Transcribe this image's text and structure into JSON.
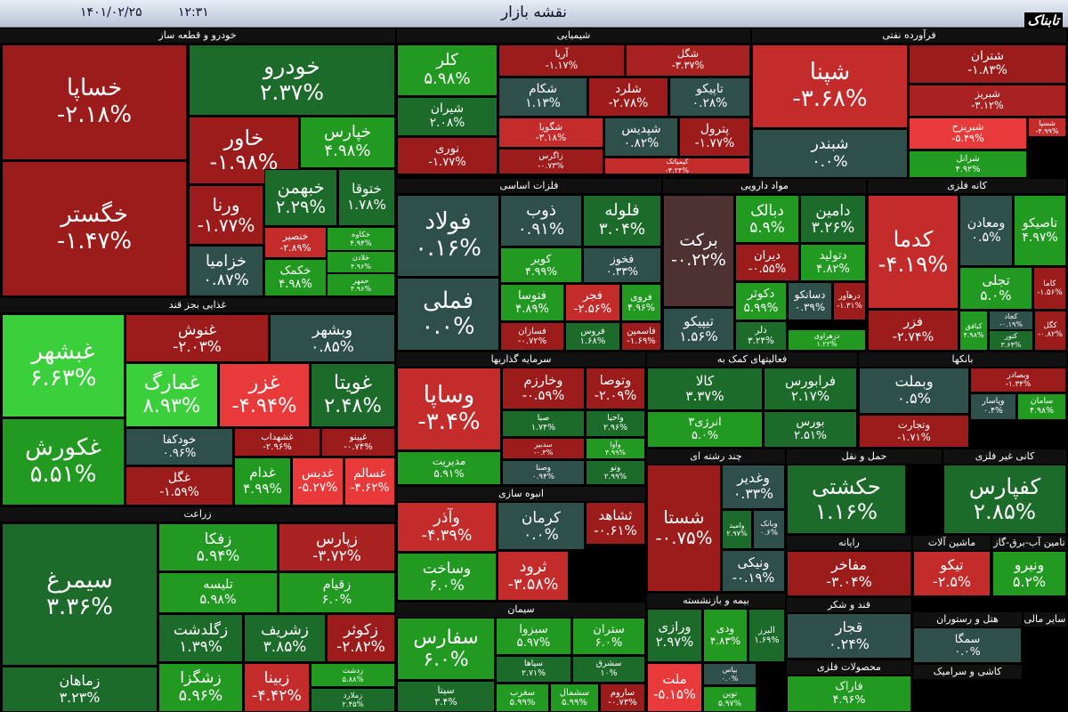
{
  "header": {
    "date": "۱۴۰۱/۰۲/۲۵",
    "time": "۱۲:۳۱",
    "title": "نقشه بازار",
    "logo": "تابناک"
  },
  "sectors": [
    {
      "name": "خودرو و قطعه ساز",
      "tiles": [
        {
          "name": "خساپا",
          "change": "-۲.۱۸%",
          "color": "#9c1c1c"
        },
        {
          "name": "خگستر",
          "change": "-۱.۴۷%",
          "color": "#9c1c1c"
        },
        {
          "name": "خودرو",
          "change": "۲.۳۷%",
          "color": "#1d6b2b"
        },
        {
          "name": "خاور",
          "change": "-۱.۹۸%",
          "color": "#9c1c1c"
        },
        {
          "name": "خپارس",
          "change": "۴.۹۸%",
          "color": "#229a22"
        },
        {
          "name": "ورنا",
          "change": "-۱.۷۷%",
          "color": "#9c1c1c"
        },
        {
          "name": "خبهمن",
          "change": "۲.۲۹%",
          "color": "#1d6b2b"
        },
        {
          "name": "ختوقا",
          "change": "۱.۷۸%",
          "color": "#1d6b2b"
        },
        {
          "name": "خزامیا",
          "change": "۰.۸۷%",
          "color": "#2f4f4a"
        },
        {
          "name": "خنصیر",
          "change": "-۲.۸۹%",
          "color": "#c42b2b"
        },
        {
          "name": "خکمک",
          "change": "۴.۹۸%",
          "color": "#229a22"
        },
        {
          "name": "خکاوه",
          "change": "۴.۹۴%",
          "color": "#229a22"
        },
        {
          "name": "خلادن",
          "change": "۴.۹۶%",
          "color": "#229a22"
        },
        {
          "name": "خمهر",
          "change": "۴.۹۶%",
          "color": "#229a22"
        }
      ]
    },
    {
      "name": "شیمیایی",
      "tiles": [
        {
          "name": "کلر",
          "change": "۵.۹۸%",
          "color": "#229a22"
        },
        {
          "name": "شیران",
          "change": "۲.۰۸%",
          "color": "#1d6b2b"
        },
        {
          "name": "نوری",
          "change": "-۱.۷۷%",
          "color": "#9c1c1c"
        },
        {
          "name": "آریا",
          "change": "-۱.۱۷%",
          "color": "#9c1c1c"
        },
        {
          "name": "شگل",
          "change": "-۳.۳۷%",
          "color": "#a82222"
        },
        {
          "name": "شکام",
          "change": "۱.۱۳%",
          "color": "#2f4f4a"
        },
        {
          "name": "شلرد",
          "change": "-۲.۷۸%",
          "color": "#9c1c1c"
        },
        {
          "name": "تاپیکو",
          "change": "۰.۲۸%",
          "color": "#2f4f4a"
        },
        {
          "name": "شگویا",
          "change": "-۳.۱۸%",
          "color": "#c42b2b"
        },
        {
          "name": "شپدیس",
          "change": "۰.۸۲%",
          "color": "#2f4f4a"
        },
        {
          "name": "پترول",
          "change": "-۱.۷۷%",
          "color": "#9c1c1c"
        },
        {
          "name": "زاگرس",
          "change": "-۰.۷۳%",
          "color": "#9c1c1c"
        },
        {
          "name": "کیمیاتک",
          "change": "-۴.۲۴%",
          "color": "#c42b2b"
        }
      ]
    },
    {
      "name": "فرآورده نفتی",
      "tiles": [
        {
          "name": "شپنا",
          "change": "-۳.۶۸%",
          "color": "#c42b2b"
        },
        {
          "name": "شبندر",
          "change": "۰.۰%",
          "color": "#2f4f4a"
        },
        {
          "name": "شتران",
          "change": "-۱.۸۳%",
          "color": "#9c1c1c"
        },
        {
          "name": "شبریز",
          "change": "-۳.۱۲%",
          "color": "#a82222"
        },
        {
          "name": "شبریزح",
          "change": "-۵.۴۹%",
          "color": "#e83a3a"
        },
        {
          "name": "شرانل",
          "change": "۴.۹۲%",
          "color": "#229a22"
        },
        {
          "name": "شسپا",
          "change": "-۴.۹۹%",
          "color": "#c42b2b"
        }
      ]
    },
    {
      "name": "فلزات اساسی",
      "tiles": [
        {
          "name": "فولاد",
          "change": "۰.۱۶%",
          "color": "#2f4f4a"
        },
        {
          "name": "فملی",
          "change": "۰.۰%",
          "color": "#2f4f4a"
        },
        {
          "name": "ذوب",
          "change": "۰.۹۱%",
          "color": "#2f4f4a"
        },
        {
          "name": "فلوله",
          "change": "۳.۰۴%",
          "color": "#1d6b2b"
        },
        {
          "name": "کویر",
          "change": "۴.۹۹%",
          "color": "#229a22"
        },
        {
          "name": "فخوز",
          "change": "۰.۳۳%",
          "color": "#2f4f4a"
        },
        {
          "name": "فتوسا",
          "change": "۴.۸۹%",
          "color": "#229a22"
        },
        {
          "name": "فجر",
          "change": "-۲.۵۶%",
          "color": "#c42b2b"
        },
        {
          "name": "فروی",
          "change": "۴.۹۶%",
          "color": "#229a22"
        },
        {
          "name": "فسازان",
          "change": "-۰.۷۲%",
          "color": "#9c1c1c"
        },
        {
          "name": "فروس",
          "change": "۱.۶۸%",
          "color": "#1d6b2b"
        },
        {
          "name": "فاسمین",
          "change": "-۱.۶۹%",
          "color": "#9c1c1c"
        }
      ]
    },
    {
      "name": "مواد دارویی",
      "tiles": [
        {
          "name": "برکت",
          "change": "-۰.۲۲%",
          "color": "#4d3133"
        },
        {
          "name": "تیپیکو",
          "change": "۱.۵۶%",
          "color": "#2f4f4a"
        },
        {
          "name": "دبالک",
          "change": "۵.۹%",
          "color": "#229a22"
        },
        {
          "name": "دامین",
          "change": "۳.۲۶%",
          "color": "#1d6b2b"
        },
        {
          "name": "دیران",
          "change": "-۰.۵۵%",
          "color": "#9c1c1c"
        },
        {
          "name": "دتولید",
          "change": "۴.۸۲%",
          "color": "#229a22"
        },
        {
          "name": "دکوثر",
          "change": "۵.۹۹%",
          "color": "#229a22"
        },
        {
          "name": "دسانکو",
          "change": "۰.۳۹%",
          "color": "#2f4f4a"
        },
        {
          "name": "درهآور",
          "change": "-۱.۳۱%",
          "color": "#9c1c1c"
        },
        {
          "name": "دلر",
          "change": "۳.۲۴%",
          "color": "#1d6b2b"
        },
        {
          "name": "دزهراوی",
          "change": "۱.۲۲%",
          "color": "#229a22"
        }
      ]
    },
    {
      "name": "کانه فلزی",
      "tiles": [
        {
          "name": "کدما",
          "change": "-۴.۱۹%",
          "color": "#c42b2b"
        },
        {
          "name": "فزر",
          "change": "-۲.۷۴%",
          "color": "#9c1c1c"
        },
        {
          "name": "ومعادن",
          "change": "۰.۵%",
          "color": "#2f4f4a"
        },
        {
          "name": "تاصیکو",
          "change": "۴.۹۷%",
          "color": "#229a22"
        },
        {
          "name": "تجلی",
          "change": "۵.۰%",
          "color": "#229a22"
        },
        {
          "name": "کاما",
          "change": "-۱.۵۶%",
          "color": "#9c1c1c"
        },
        {
          "name": "کبافق",
          "change": "۴.۹۸%",
          "color": "#229a22"
        },
        {
          "name": "کجاد",
          "change": "-۰.۱۹%",
          "color": "#2f4f4a"
        },
        {
          "name": "کنور",
          "change": "۳.۶۴%",
          "color": "#1d6b2b"
        },
        {
          "name": "کگل",
          "change": "-۰.۸۲%",
          "color": "#9c1c1c"
        }
      ]
    },
    {
      "name": "غذایی بجز قند",
      "tiles": [
        {
          "name": "غبشهر",
          "change": "۶.۶۳%",
          "color": "#3ccf3c"
        },
        {
          "name": "غکورش",
          "change": "۵.۵۱%",
          "color": "#229a22"
        },
        {
          "name": "غنوش",
          "change": "-۲.۰۳%",
          "color": "#9c1c1c"
        },
        {
          "name": "وبشهر",
          "change": "۰.۸۵%",
          "color": "#2f4f4a"
        },
        {
          "name": "غمارگ",
          "change": "۸.۹۳%",
          "color": "#3ccf3c"
        },
        {
          "name": "غزر",
          "change": "-۴.۹۴%",
          "color": "#e83a3a"
        },
        {
          "name": "غویتا",
          "change": "۲.۴۸%",
          "color": "#1d6b2b"
        },
        {
          "name": "خودکفا",
          "change": "۰.۹۶%",
          "color": "#2f4f4a"
        },
        {
          "name": "غشهداب",
          "change": "-۲.۹۶%",
          "color": "#9c1c1c"
        },
        {
          "name": "غپینو",
          "change": "-۰.۷۴%",
          "color": "#9c1c1c"
        },
        {
          "name": "غگل",
          "change": "-۱.۵۹%",
          "color": "#9c1c1c"
        },
        {
          "name": "غدام",
          "change": "۴.۹۹%",
          "color": "#229a22"
        },
        {
          "name": "غدیس",
          "change": "-۵.۲۷%",
          "color": "#e83a3a"
        },
        {
          "name": "غسالم",
          "change": "-۴.۶۲%",
          "color": "#e83a3a"
        }
      ]
    },
    {
      "name": "زراعت",
      "tiles": [
        {
          "name": "سیمرغ",
          "change": "۳.۳۶%",
          "color": "#1d6b2b"
        },
        {
          "name": "زماهان",
          "change": "۳.۲۳%",
          "color": "#1d6b2b"
        },
        {
          "name": "زفکا",
          "change": "۵.۹۴%",
          "color": "#229a22"
        },
        {
          "name": "زپارس",
          "change": "-۳.۷۲%",
          "color": "#a82222"
        },
        {
          "name": "تلیسه",
          "change": "۵.۹۸%",
          "color": "#229a22"
        },
        {
          "name": "زقیام",
          "change": "۶.۰%",
          "color": "#229a22"
        },
        {
          "name": "زگلدشت",
          "change": "۱.۳۹%",
          "color": "#1d6b2b"
        },
        {
          "name": "زشریف",
          "change": "۳.۸۵%",
          "color": "#1d6b2b"
        },
        {
          "name": "زکوثر",
          "change": "-۲.۸۲%",
          "color": "#9c1c1c"
        },
        {
          "name": "زشگزا",
          "change": "۵.۹۶%",
          "color": "#229a22"
        },
        {
          "name": "زبینا",
          "change": "-۴.۴۲%",
          "color": "#c42b2b"
        },
        {
          "name": "زدشت",
          "change": "۵.۸۸%",
          "color": "#229a22"
        },
        {
          "name": "زملارد",
          "change": "۲.۴۵%",
          "color": "#1d6b2b"
        }
      ]
    },
    {
      "name": "سرمایه گذاریها",
      "tiles": [
        {
          "name": "وساپا",
          "change": "-۳.۴%",
          "color": "#c42b2b"
        },
        {
          "name": "مدیریت",
          "change": "۵.۹۱%",
          "color": "#229a22"
        },
        {
          "name": "وخارزم",
          "change": "-۰.۵۹%",
          "color": "#9c1c1c"
        },
        {
          "name": "وتوصا",
          "change": "-۲.۰۹%",
          "color": "#9c1c1c"
        },
        {
          "name": "صبا",
          "change": "۱.۷۴%",
          "color": "#1d6b2b"
        },
        {
          "name": "واحیا",
          "change": "۲.۹۶%",
          "color": "#1d6b2b"
        },
        {
          "name": "سدبیر",
          "change": "-۰.۳%",
          "color": "#9c1c1c"
        },
        {
          "name": "وآوا",
          "change": "۴.۹۹%",
          "color": "#229a22"
        },
        {
          "name": "وصنا",
          "change": "۰.۹۴%",
          "color": "#2f4f4a"
        },
        {
          "name": "وتو",
          "change": "۲.۹۹%",
          "color": "#1d6b2b"
        }
      ]
    },
    {
      "name": "فعالیتهای کمک به",
      "tiles": [
        {
          "name": "کالا",
          "change": "۳.۳۷%",
          "color": "#1d6b2b"
        },
        {
          "name": "فرابورس",
          "change": "۲.۱۷%",
          "color": "#1d6b2b"
        },
        {
          "name": "انرژی۳",
          "change": "۵.۰%",
          "color": "#229a22"
        },
        {
          "name": "بورس",
          "change": "۲.۵۱%",
          "color": "#1d6b2b"
        }
      ]
    },
    {
      "name": "بانکها",
      "tiles": [
        {
          "name": "وبملت",
          "change": "۰.۵%",
          "color": "#2f4f4a"
        },
        {
          "name": "وتجارت",
          "change": "-۱.۷۱%",
          "color": "#9c1c1c"
        },
        {
          "name": "وبصادر",
          "change": "-۱.۳۴%",
          "color": "#9c1c1c"
        },
        {
          "name": "وپاسار",
          "change": "۰.۴%",
          "color": "#2f4f4a"
        },
        {
          "name": "سامان",
          "change": "۴.۹۸%",
          "color": "#229a22"
        }
      ]
    },
    {
      "name": "انبوه سازی",
      "tiles": [
        {
          "name": "وآذر",
          "change": "-۴.۳۹%",
          "color": "#c42b2b"
        },
        {
          "name": "وساخت",
          "change": "۶.۰%",
          "color": "#229a22"
        },
        {
          "name": "کرمان",
          "change": "۰.۰%",
          "color": "#2f4f4a"
        },
        {
          "name": "ثشاهد",
          "change": "-۰.۶۱%",
          "color": "#9c1c1c"
        },
        {
          "name": "ثرود",
          "change": "-۳.۵۸%",
          "color": "#c42b2b"
        }
      ]
    },
    {
      "name": "سیمان",
      "tiles": [
        {
          "name": "سفارس",
          "change": "۶.۰%",
          "color": "#229a22"
        },
        {
          "name": "سیتا",
          "change": "۳.۴%",
          "color": "#1d6b2b"
        },
        {
          "name": "سبزوا",
          "change": "۵.۹۷%",
          "color": "#229a22"
        },
        {
          "name": "ستران",
          "change": "۶.۰%",
          "color": "#229a22"
        },
        {
          "name": "سپاها",
          "change": "۲.۷۱%",
          "color": "#1d6b2b"
        },
        {
          "name": "سشرق",
          "change": "۱۰%",
          "color": "#1d6b2b"
        },
        {
          "name": "سغرب",
          "change": "۵.۹۹%",
          "color": "#229a22"
        },
        {
          "name": "سشمال",
          "change": "۵.۹۹%",
          "color": "#229a22"
        },
        {
          "name": "ساروم",
          "change": "-۰.۷۳%",
          "color": "#9c1c1c"
        }
      ]
    },
    {
      "name": "چند رشته ای",
      "tiles": [
        {
          "name": "شستا",
          "change": "-۰.۷۵%",
          "color": "#9c1c1c"
        },
        {
          "name": "وغدیر",
          "change": "۰.۳۳%",
          "color": "#2f4f4a"
        },
        {
          "name": "وامید",
          "change": "۲.۹۷%",
          "color": "#1d6b2b"
        },
        {
          "name": "وبانک",
          "change": "۰.۶%",
          "color": "#2f4f4a"
        },
        {
          "name": "ونیکی",
          "change": "-۰.۱۹%",
          "color": "#2f4f4a"
        }
      ]
    },
    {
      "name": "بیمه و بازنشسته",
      "tiles": [
        {
          "name": "ورازی",
          "change": "۲.۹۷%",
          "color": "#1d6b2b"
        },
        {
          "name": "ودی",
          "change": "۴.۸۳%",
          "color": "#229a22"
        },
        {
          "name": "البرز",
          "change": "۱.۶۹%",
          "color": "#1d6b2b"
        },
        {
          "name": "ملت",
          "change": "-۵.۱۵%",
          "color": "#e83a3a"
        },
        {
          "name": "بپاس",
          "change": "۰.۰%",
          "color": "#2f4f4a"
        },
        {
          "name": "نوین",
          "change": "۵.۹۷%",
          "color": "#229a22"
        }
      ]
    },
    {
      "name": "حمل و نقل",
      "tiles": [
        {
          "name": "حکشتی",
          "change": "۱.۱۶%",
          "color": "#1d6b2b"
        }
      ]
    },
    {
      "name": "کانی غیر فلزی",
      "tiles": [
        {
          "name": "کفپارس",
          "change": "۲.۸۵%",
          "color": "#1d6b2b"
        }
      ]
    },
    {
      "name": "رایانه",
      "tiles": [
        {
          "name": "مفاخر",
          "change": "-۳.۰۴%",
          "color": "#9c1c1c"
        }
      ]
    },
    {
      "name": "ماشین آلات",
      "tiles": [
        {
          "name": "تیکو",
          "change": "-۲.۵%",
          "color": "#c42b2b"
        }
      ]
    },
    {
      "name": "تامین آب-برق-گاز",
      "tiles": [
        {
          "name": "ونیرو",
          "change": "۵.۲%",
          "color": "#229a22"
        }
      ]
    },
    {
      "name": "قند و شکر",
      "tiles": [
        {
          "name": "قجار",
          "change": "۰.۲۴%",
          "color": "#2f4f4a"
        }
      ]
    },
    {
      "name": "محصولات فلزی",
      "tiles": [
        {
          "name": "فاراک",
          "change": "۴.۹۶%",
          "color": "#229a22"
        }
      ]
    },
    {
      "name": "هتل و رستوران",
      "tiles": [
        {
          "name": "سمگا",
          "change": "۰.۰%",
          "color": "#2f4f4a"
        }
      ]
    },
    {
      "name": "کاشی و سرامیک",
      "tiles": []
    },
    {
      "name": "سایر مالی",
      "tiles": []
    }
  ]
}
